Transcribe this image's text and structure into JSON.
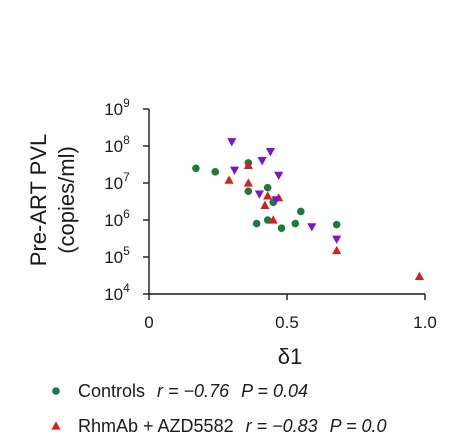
{
  "chart_data": {
    "type": "scatter",
    "xlabel": "δ1",
    "ylabel_line1": "Pre-ART PVL",
    "ylabel_line2": "(copies/ml)",
    "xlim": [
      0,
      1.0
    ],
    "ylim_log10": [
      4,
      9
    ],
    "y_scale": "log",
    "x_ticks": [
      {
        "value": 0,
        "label": "0"
      },
      {
        "value": 0.5,
        "label": "0.5"
      },
      {
        "value": 1.0,
        "label": "1.0"
      }
    ],
    "y_ticks": [
      {
        "exp": 4,
        "base": "10",
        "sup": "4"
      },
      {
        "exp": 5,
        "base": "10",
        "sup": "5"
      },
      {
        "exp": 6,
        "base": "10",
        "sup": "6"
      },
      {
        "exp": 7,
        "base": "10",
        "sup": "7"
      },
      {
        "exp": 8,
        "base": "10",
        "sup": "8"
      },
      {
        "exp": 9,
        "base": "10",
        "sup": "9"
      }
    ],
    "series": [
      {
        "name": "Controls",
        "marker": "circle",
        "color": "#1e7a3c",
        "r_label": "r = −0.76",
        "p_label": "P = 0.04",
        "points": [
          {
            "x": 0.17,
            "y": 25000000.0
          },
          {
            "x": 0.24,
            "y": 20000000.0
          },
          {
            "x": 0.36,
            "y": 35000000.0
          },
          {
            "x": 0.36,
            "y": 6000000.0
          },
          {
            "x": 0.39,
            "y": 800000.0
          },
          {
            "x": 0.43,
            "y": 7500000.0
          },
          {
            "x": 0.43,
            "y": 1000000.0
          },
          {
            "x": 0.45,
            "y": 3000000.0
          },
          {
            "x": 0.48,
            "y": 600000.0
          },
          {
            "x": 0.53,
            "y": 800000.0
          },
          {
            "x": 0.55,
            "y": 1700000.0
          },
          {
            "x": 0.68,
            "y": 750000.0
          }
        ]
      },
      {
        "name": "RhmAb + AZD5582",
        "marker": "triangle-up",
        "color": "#d42020",
        "r_label": "r = −0.83",
        "p_label": "P = 0.0",
        "points": [
          {
            "x": 0.29,
            "y": 12000000.0
          },
          {
            "x": 0.36,
            "y": 10000000.0
          },
          {
            "x": 0.36,
            "y": 30000000.0
          },
          {
            "x": 0.43,
            "y": 4500000.0
          },
          {
            "x": 0.42,
            "y": 2500000.0
          },
          {
            "x": 0.45,
            "y": 1000000.0
          },
          {
            "x": 0.47,
            "y": 4000000.0
          },
          {
            "x": 0.68,
            "y": 150000.0
          },
          {
            "x": 0.98,
            "y": 30000.0
          }
        ]
      },
      {
        "name": "",
        "marker": "triangle-down",
        "color": "#7b16c8",
        "points": [
          {
            "x": 0.3,
            "y": 130000000.0
          },
          {
            "x": 0.31,
            "y": 22000000.0
          },
          {
            "x": 0.41,
            "y": 40000000.0
          },
          {
            "x": 0.44,
            "y": 70000000.0
          },
          {
            "x": 0.47,
            "y": 16000000.0
          },
          {
            "x": 0.4,
            "y": 5000000.0
          },
          {
            "x": 0.46,
            "y": 3500000.0
          },
          {
            "x": 0.59,
            "y": 650000.0
          },
          {
            "x": 0.68,
            "y": 300000.0
          }
        ]
      }
    ]
  }
}
